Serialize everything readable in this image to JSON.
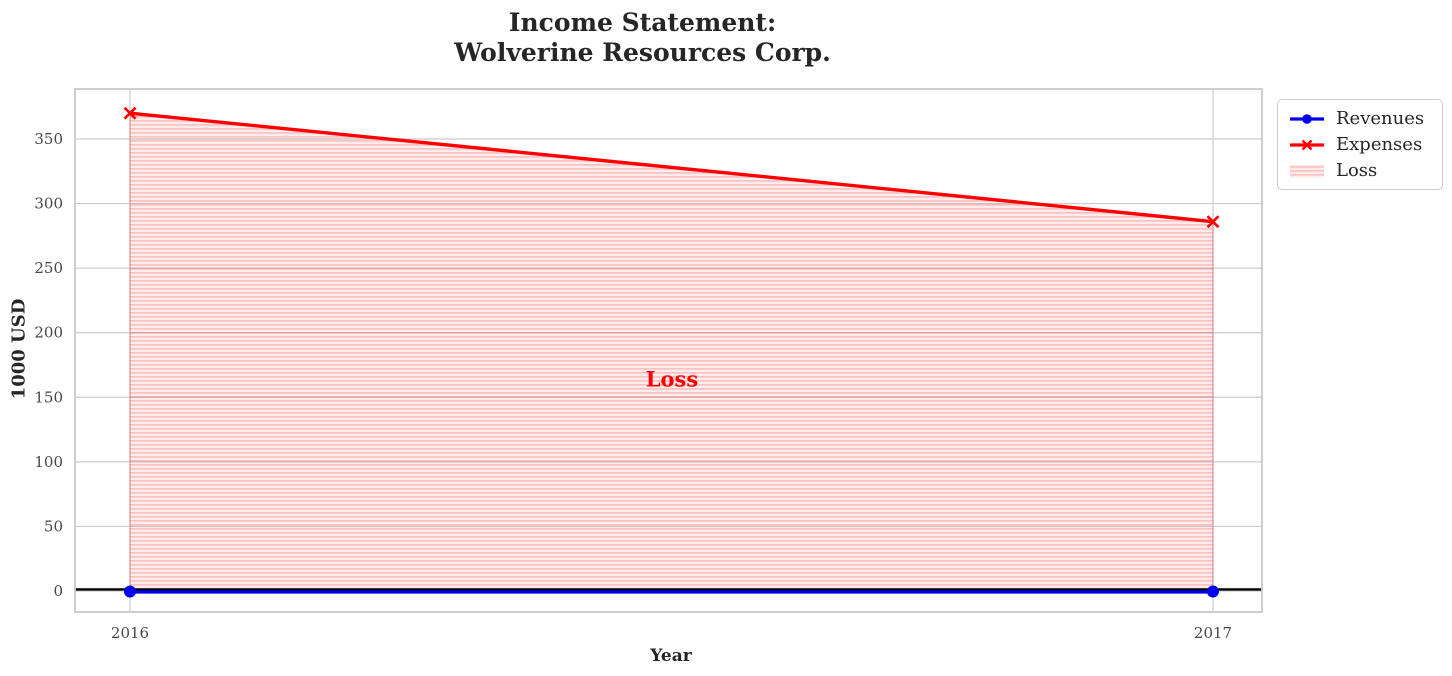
{
  "chart_data": {
    "type": "line",
    "title": "Income Statement:\nWolverine Resources Corp.",
    "xlabel": "Year",
    "ylabel": "1000 USD",
    "x": [
      2016,
      2017
    ],
    "xticklabels": [
      "2016",
      "2017"
    ],
    "yticks": [
      0,
      50,
      100,
      150,
      200,
      250,
      300,
      350
    ],
    "ylim": [
      -16,
      389
    ],
    "grid": true,
    "series": [
      {
        "name": "Revenues",
        "color": "#0000ee",
        "marker": "circle",
        "values": [
          0,
          0
        ]
      },
      {
        "name": "Expenses",
        "color": "#ff0000",
        "marker": "x",
        "values": [
          370,
          286
        ]
      }
    ],
    "loss_area": {
      "label": "Loss",
      "between": [
        "Expenses",
        "Revenues"
      ],
      "fill": "rgba(255,0,0,0.07)",
      "hatch_color": "rgba(255,0,0,0.18)",
      "hatch": "horizontal"
    },
    "annotations": [
      {
        "text": "Loss",
        "x": 2016.5,
        "y": 164,
        "color": "#ff0000"
      }
    ],
    "zero_line_color": "#000000",
    "grid_color": "#cccccc",
    "legend": {
      "position": "upper-right-outside",
      "entries": [
        "Revenues",
        "Expenses",
        "Loss"
      ]
    }
  }
}
